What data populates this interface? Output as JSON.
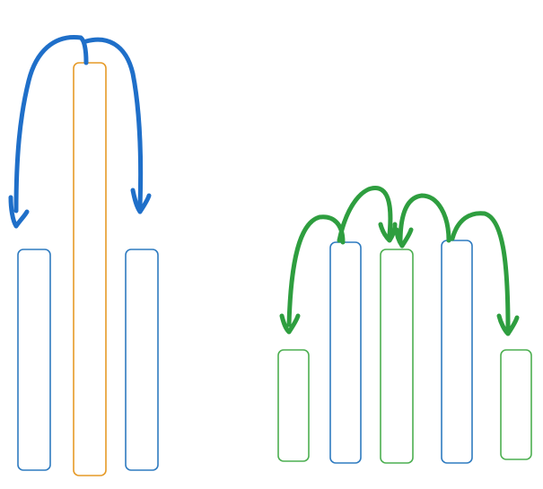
{
  "colors": {
    "background": "#ffffff",
    "blue_bar": "#2f7bc0",
    "orange_bar": "#e69a27",
    "green_bar": "#4caf50",
    "blue_arrow": "#1f6fc9",
    "green_arrow": "#2e9e3f"
  },
  "left_group": {
    "bars": [
      {
        "role": "neighbor",
        "color_key": "blue_bar"
      },
      {
        "role": "highlighted",
        "color_key": "orange_bar"
      },
      {
        "role": "neighbor",
        "color_key": "blue_bar"
      }
    ],
    "arrows": [
      {
        "direction": "center-to-left",
        "color_key": "blue_arrow"
      },
      {
        "direction": "center-to-right",
        "color_key": "blue_arrow"
      }
    ]
  },
  "right_group": {
    "bars": [
      {
        "role": "short",
        "color_key": "green_bar"
      },
      {
        "role": "tall",
        "color_key": "blue_bar"
      },
      {
        "role": "tall",
        "color_key": "green_bar"
      },
      {
        "role": "tall",
        "color_key": "blue_bar"
      },
      {
        "role": "short",
        "color_key": "green_bar"
      }
    ],
    "arrows": [
      {
        "direction": "bar2-to-bar1",
        "color_key": "green_arrow"
      },
      {
        "direction": "bar2-to-bar3",
        "color_key": "green_arrow"
      },
      {
        "direction": "bar4-to-bar3",
        "color_key": "green_arrow"
      },
      {
        "direction": "bar4-to-bar5",
        "color_key": "green_arrow"
      }
    ]
  }
}
